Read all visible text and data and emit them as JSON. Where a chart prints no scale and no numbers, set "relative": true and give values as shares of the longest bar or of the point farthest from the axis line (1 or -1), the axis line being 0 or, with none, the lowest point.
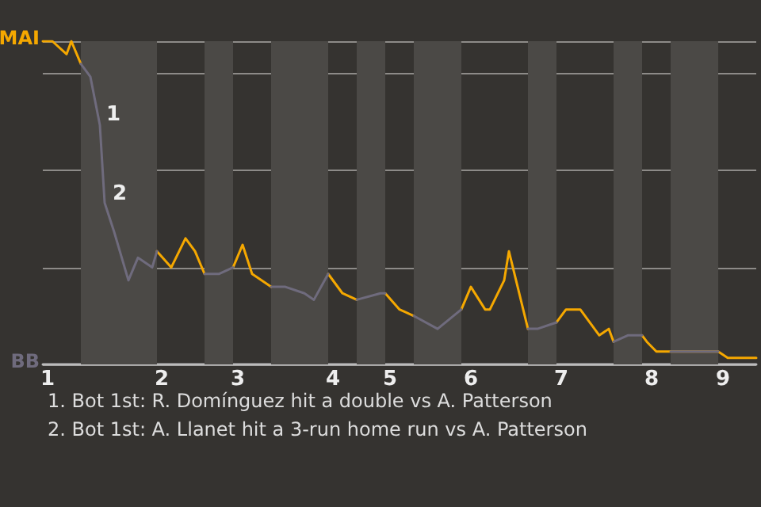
{
  "chart_data": {
    "type": "line",
    "relative": true,
    "categories": [
      null,
      "1",
      null,
      null,
      null,
      null,
      null,
      null,
      null,
      null,
      null,
      null,
      null,
      null,
      null,
      null,
      null,
      null,
      null,
      null,
      null,
      null,
      null,
      null,
      null,
      "2",
      null,
      null,
      null,
      null,
      null,
      null,
      null,
      null,
      null,
      null,
      null,
      null,
      null,
      null,
      null,
      "3",
      null,
      null,
      null,
      null,
      null,
      null,
      null,
      null,
      null,
      null,
      null,
      null,
      null,
      null,
      null,
      null,
      null,
      null,
      null,
      "4",
      null,
      null,
      null,
      null,
      null,
      null,
      null,
      null,
      null,
      null,
      null,
      "5",
      null,
      null,
      null,
      null,
      null,
      null,
      null,
      null,
      null,
      null,
      null,
      null,
      null,
      null,
      null,
      null,
      "6",
      null,
      null,
      null,
      null,
      null,
      null,
      null,
      null,
      null,
      null,
      null,
      null,
      null,
      null,
      null,
      null,
      null,
      null,
      "7",
      null,
      null,
      null,
      null,
      null,
      null,
      null,
      null,
      null,
      null,
      null,
      null,
      null,
      null,
      null,
      null,
      null,
      null,
      "8",
      null,
      null,
      null,
      null,
      null,
      null,
      null,
      null,
      null,
      null,
      null,
      null,
      null,
      null,
      "9",
      null,
      null,
      null,
      null,
      null,
      null,
      null
    ],
    "grid": "y",
    "legend": "left",
    "line_style": "solid",
    "marker": "none",
    "series": [
      {
        "name": "MAI",
        "color": "#f5a800",
        "values": [
          1.0,
          null,
          1.0,
          null,
          null,
          0.96,
          1.0,
          null,
          0.93,
          null,
          null,
          null,
          null,
          null,
          null,
          null,
          null,
          null,
          null,
          null,
          null,
          null,
          null,
          null,
          0.35,
          null,
          null,
          0.3,
          null,
          null,
          0.39,
          null,
          0.35,
          null,
          0.28,
          null,
          null,
          null,
          null,
          null,
          0.3,
          null,
          0.37,
          null,
          0.28,
          null,
          null,
          null,
          0.24,
          null,
          null,
          null,
          null,
          null,
          null,
          null,
          null,
          null,
          null,
          null,
          0.28,
          null,
          null,
          0.22,
          null,
          null,
          0.2,
          null,
          null,
          null,
          null,
          null,
          0.22,
          null,
          null,
          0.17,
          null,
          null,
          0.15,
          null,
          null,
          null,
          null,
          null,
          null,
          null,
          null,
          null,
          0.17,
          null,
          0.24,
          null,
          null,
          0.17,
          0.17,
          null,
          null,
          0.26,
          0.35,
          null,
          null,
          null,
          0.11,
          null,
          null,
          null,
          null,
          null,
          0.13,
          null,
          0.17,
          null,
          null,
          0.17,
          null,
          null,
          null,
          0.09,
          null,
          0.11,
          0.07,
          null,
          null,
          null,
          null,
          null,
          0.09,
          0.07,
          null,
          0.04,
          null,
          null,
          0.04,
          null,
          null,
          null,
          null,
          null,
          null,
          null,
          null,
          null,
          0.04,
          null,
          0.02,
          null,
          null,
          0.02,
          null,
          null,
          0.02
        ]
      },
      {
        "name": "BB",
        "color": "#6f6b7d",
        "values": [
          null,
          null,
          null,
          null,
          null,
          null,
          null,
          null,
          0.93,
          null,
          0.89,
          null,
          0.74,
          0.5,
          null,
          0.41,
          null,
          null,
          0.26,
          null,
          0.33,
          null,
          null,
          0.3,
          0.35,
          null,
          null,
          null,
          null,
          null,
          null,
          null,
          null,
          null,
          0.28,
          null,
          null,
          0.28,
          null,
          null,
          0.3,
          null,
          null,
          null,
          null,
          null,
          null,
          null,
          0.24,
          null,
          null,
          0.24,
          null,
          null,
          null,
          0.22,
          null,
          0.2,
          null,
          null,
          0.28,
          null,
          null,
          null,
          null,
          null,
          0.2,
          null,
          null,
          null,
          null,
          0.22,
          0.22,
          null,
          null,
          null,
          null,
          null,
          0.15,
          null,
          null,
          null,
          null,
          0.11,
          null,
          null,
          null,
          null,
          0.17,
          null,
          null,
          null,
          null,
          null,
          null,
          null,
          null,
          null,
          null,
          null,
          null,
          null,
          0.11,
          null,
          0.11,
          null,
          null,
          null,
          0.13,
          null,
          null,
          null,
          null,
          null,
          null,
          null,
          null,
          null,
          null,
          null,
          0.07,
          null,
          null,
          0.09,
          null,
          null,
          0.09,
          null,
          null,
          null,
          null,
          null,
          0.04,
          null,
          null,
          null,
          null,
          null,
          null,
          null,
          null,
          null,
          0.04,
          null,
          null,
          null,
          null,
          null,
          null,
          null,
          null
        ]
      }
    ],
    "annotations": [
      "1",
      "2",
      "1. Bot 1st: R. Domínguez hit a double vs A. Patterson",
      "2. Bot 1st: A. Llanet hit a 3-run home run vs A. Patterson"
    ]
  }
}
